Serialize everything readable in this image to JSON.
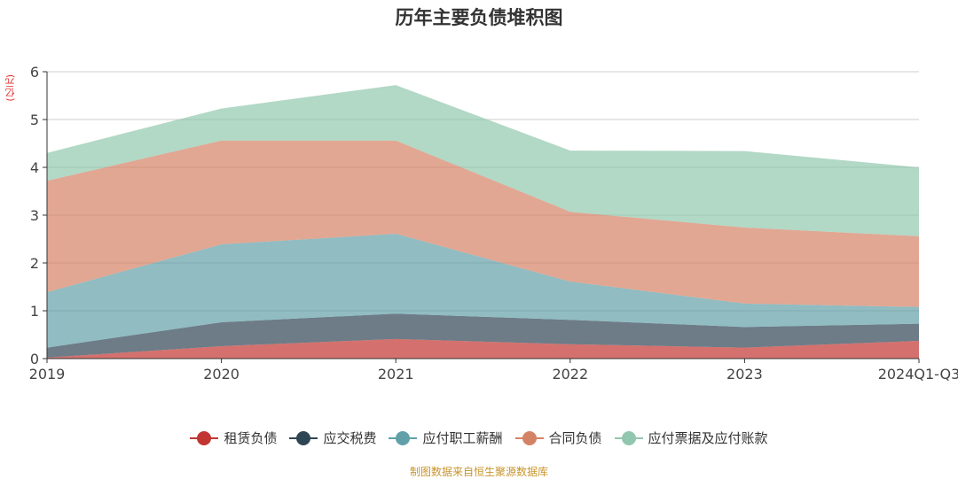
{
  "chart_data": {
    "type": "area",
    "stacked": true,
    "title": "历年主要负债堆积图",
    "ylabel": "(亿元)",
    "xlabel": "",
    "categories": [
      "2019",
      "2020",
      "2021",
      "2022",
      "2023",
      "2024Q1-Q3"
    ],
    "ylim": [
      0,
      6
    ],
    "yticks": [
      "0",
      "1",
      "2",
      "3",
      "4",
      "5",
      "6"
    ],
    "grid": true,
    "legend_position": "bottom",
    "series": [
      {
        "name": "租赁负债",
        "color": "#c23531",
        "values": [
          0.02,
          0.26,
          0.41,
          0.3,
          0.23,
          0.37
        ]
      },
      {
        "name": "应交税费",
        "color": "#2f4554",
        "values": [
          0.21,
          0.5,
          0.53,
          0.51,
          0.43,
          0.36
        ]
      },
      {
        "name": "应付职工薪酬",
        "color": "#61a0a8",
        "values": [
          1.16,
          1.63,
          1.67,
          0.8,
          0.49,
          0.35
        ]
      },
      {
        "name": "合同负债",
        "color": "#d48265",
        "values": [
          2.33,
          2.17,
          1.95,
          1.46,
          1.59,
          1.48
        ]
      },
      {
        "name": "应付票据及应付账款",
        "color": "#91c7ae",
        "values": [
          0.58,
          0.67,
          1.16,
          1.28,
          1.6,
          1.44
        ]
      }
    ]
  },
  "footer": "制图数据来自恒生聚源数据库"
}
